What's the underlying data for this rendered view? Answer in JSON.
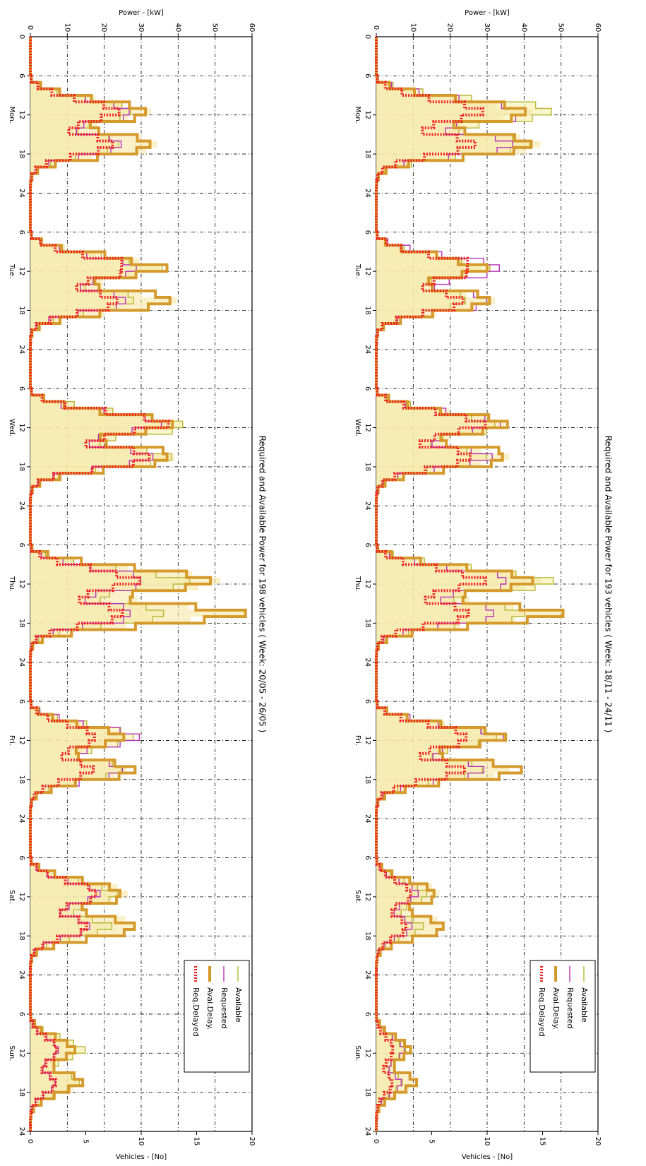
{
  "chart_data": [
    {
      "type": "area",
      "title": "Required and Available Power for 198 vehicles   ( Week: 20/05 - 26/05 )",
      "power_label": "Power - [kW]",
      "vehicles_label": "Vehicles - [No]",
      "power_ticks": [
        "0",
        "10",
        "20",
        "30",
        "40",
        "50",
        "60"
      ],
      "power_range": [
        0,
        60
      ],
      "vehicles_ticks": [
        "0",
        "5",
        "10",
        "15",
        "20"
      ],
      "vehicles_range": [
        0,
        20
      ],
      "time_ticks": [
        "6",
        "12",
        "18",
        "24",
        "6",
        "12",
        "18",
        "24",
        "6",
        "12",
        "18",
        "24",
        "6",
        "12",
        "18",
        "24",
        "6",
        "12",
        "18",
        "24",
        "6",
        "12",
        "18",
        "24",
        "6",
        "12",
        "18",
        "24"
      ],
      "days": [
        "Mon.",
        "Tue.",
        "Wed.",
        "Thu.",
        "Fri.",
        "Sat.",
        "Sun."
      ],
      "legend_position": "bottom-right",
      "grid": true,
      "peaks_kW": {
        "Available": [
          31,
          36,
          45,
          45,
          30,
          26,
          15
        ],
        "Requested": [
          30,
          31,
          37,
          34,
          30,
          20,
          8
        ],
        "Avai.Delay.": [
          34,
          37,
          39,
          53,
          26,
          28,
          13
        ],
        "Req.Delayed": [
          25,
          29,
          38,
          30,
          20,
          19,
          8
        ]
      },
      "legend": [
        {
          "name": "Available",
          "color": "#b5b834",
          "style": "thin"
        },
        {
          "name": "Requested",
          "color": "#b832b8",
          "style": "thin"
        },
        {
          "name": "Avai.Delay.",
          "color": "#d59a2c",
          "style": "thick"
        },
        {
          "name": "Req.Delayed",
          "color": "#ee2222",
          "style": "dotted"
        }
      ]
    },
    {
      "type": "area",
      "title": "Required and Available Power for 193 vehicles   ( Week: 18/11 - 24/11 )",
      "power_label": "Power - [kW]",
      "vehicles_label": "Vehicles - [No]",
      "power_ticks": [
        "0",
        "10",
        "20",
        "30",
        "40",
        "50",
        "60"
      ],
      "power_range": [
        0,
        60
      ],
      "vehicles_ticks": [
        "0",
        "5",
        "10",
        "15",
        "20"
      ],
      "vehicles_range": [
        0,
        20
      ],
      "time_ticks": [
        "6",
        "12",
        "18",
        "24",
        "6",
        "12",
        "18",
        "24",
        "6",
        "12",
        "18",
        "24",
        "6",
        "12",
        "18",
        "24",
        "6",
        "12",
        "18",
        "24",
        "6",
        "12",
        "18",
        "24",
        "6",
        "12",
        "18",
        "24"
      ],
      "days": [
        "Mon.",
        "Tue.",
        "Wed.",
        "Thu.",
        "Fri.",
        "Sat.",
        "Sun."
      ],
      "legend_position": "bottom-right",
      "grid": true,
      "peaks_kW": {
        "Available": [
          54,
          31,
          35,
          50,
          35,
          15,
          8
        ],
        "Requested": [
          45,
          36,
          35,
          40,
          35,
          12,
          8
        ],
        "Avai.Delay.": [
          44,
          30,
          36,
          46,
          36,
          18,
          10
        ],
        "Req.Delayed": [
          30,
          29,
          30,
          30,
          28,
          10,
          5
        ]
      },
      "legend": [
        {
          "name": "Available",
          "color": "#b5b834",
          "style": "thin"
        },
        {
          "name": "Requested",
          "color": "#b832b8",
          "style": "thin"
        },
        {
          "name": "Avai.Delay.",
          "color": "#d59a2c",
          "style": "thick"
        },
        {
          "name": "Req.Delayed",
          "color": "#ee2222",
          "style": "dotted"
        }
      ]
    }
  ]
}
